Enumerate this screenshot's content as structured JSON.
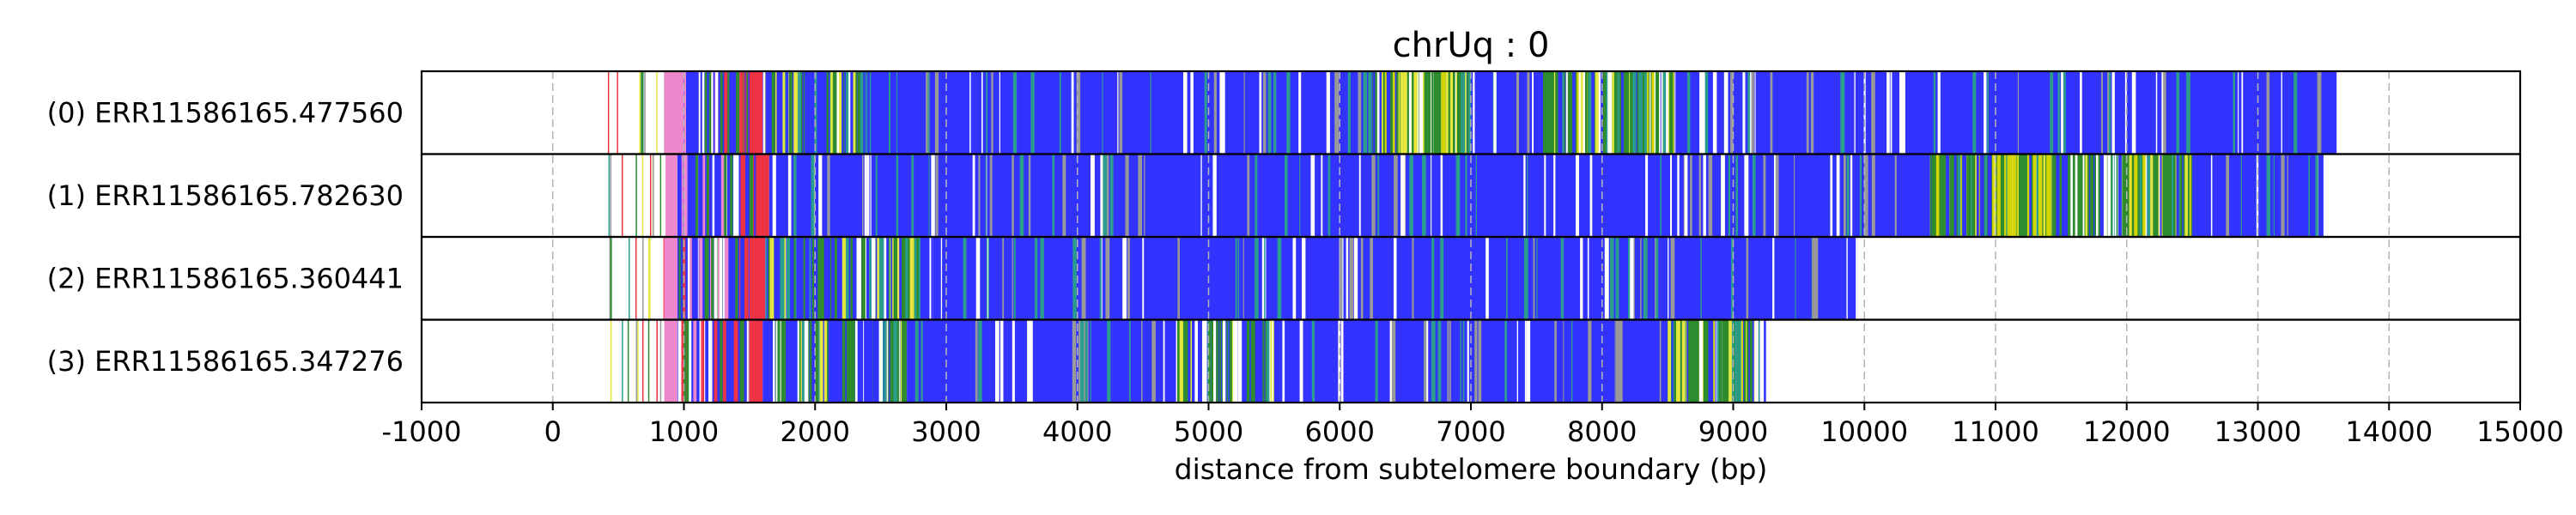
{
  "chart_data": {
    "type": "bar",
    "title": "chrUq : 0",
    "xlabel": "distance from subtelomere boundary (bp)",
    "xlim": [
      -1000,
      15000
    ],
    "xticks": [
      "-1000",
      "0",
      "1000",
      "2000",
      "3000",
      "4000",
      "5000",
      "6000",
      "7000",
      "8000",
      "9000",
      "10000",
      "11000",
      "12000",
      "13000",
      "14000",
      "15000"
    ],
    "grid": "vertical dashed",
    "colors": {
      "blue": "#3333ff",
      "green": "#2e8b2e",
      "red": "#ee3344",
      "pink": "#ee88cc",
      "yellow": "#e6e640",
      "teal": "#2a9d8f",
      "grey": "#999999"
    },
    "reads": [
      {
        "label": "(0) ERR11586165.477560",
        "end": 13600,
        "segments": [
          {
            "start": 330,
            "end": 850,
            "color": "sparse"
          },
          {
            "start": 850,
            "end": 1000,
            "color": "pink"
          },
          {
            "start": 1000,
            "end": 1500,
            "color": "mix"
          },
          {
            "start": 1500,
            "end": 1600,
            "color": "red"
          },
          {
            "start": 1600,
            "end": 2400,
            "color": "greenmix"
          },
          {
            "start": 2400,
            "end": 6250,
            "color": "blue"
          },
          {
            "start": 6250,
            "end": 7000,
            "color": "greenyellow"
          },
          {
            "start": 7000,
            "end": 7550,
            "color": "blue"
          },
          {
            "start": 7550,
            "end": 8550,
            "color": "greenyellow"
          },
          {
            "start": 8550,
            "end": 13600,
            "color": "blue"
          }
        ]
      },
      {
        "label": "(1) ERR11586165.782630",
        "end": 13500,
        "segments": [
          {
            "start": 400,
            "end": 860,
            "color": "sparse"
          },
          {
            "start": 860,
            "end": 950,
            "color": "pink"
          },
          {
            "start": 950,
            "end": 1550,
            "color": "mix"
          },
          {
            "start": 1550,
            "end": 1650,
            "color": "red"
          },
          {
            "start": 1650,
            "end": 10500,
            "color": "blue"
          },
          {
            "start": 10500,
            "end": 12500,
            "color": "greenyellow"
          },
          {
            "start": 12500,
            "end": 13500,
            "color": "blue"
          }
        ]
      },
      {
        "label": "(2) ERR11586165.360441",
        "end": 9950,
        "segments": [
          {
            "start": 420,
            "end": 850,
            "color": "sparse"
          },
          {
            "start": 850,
            "end": 950,
            "color": "pink"
          },
          {
            "start": 950,
            "end": 1500,
            "color": "mix"
          },
          {
            "start": 1500,
            "end": 1620,
            "color": "red"
          },
          {
            "start": 1620,
            "end": 2900,
            "color": "greenmix"
          },
          {
            "start": 2900,
            "end": 9950,
            "color": "blue"
          }
        ]
      },
      {
        "label": "(3) ERR11586165.347276",
        "end": 9250,
        "segments": [
          {
            "start": 420,
            "end": 850,
            "color": "sparse"
          },
          {
            "start": 850,
            "end": 950,
            "color": "pink"
          },
          {
            "start": 950,
            "end": 1500,
            "color": "mix"
          },
          {
            "start": 1500,
            "end": 1600,
            "color": "red"
          },
          {
            "start": 1600,
            "end": 2700,
            "color": "greenmix"
          },
          {
            "start": 2700,
            "end": 4650,
            "color": "blue"
          },
          {
            "start": 4650,
            "end": 5500,
            "color": "greenmix"
          },
          {
            "start": 5500,
            "end": 8500,
            "color": "blue"
          },
          {
            "start": 8500,
            "end": 9200,
            "color": "greenyellow"
          },
          {
            "start": 9200,
            "end": 9250,
            "color": "blue"
          }
        ]
      }
    ]
  }
}
